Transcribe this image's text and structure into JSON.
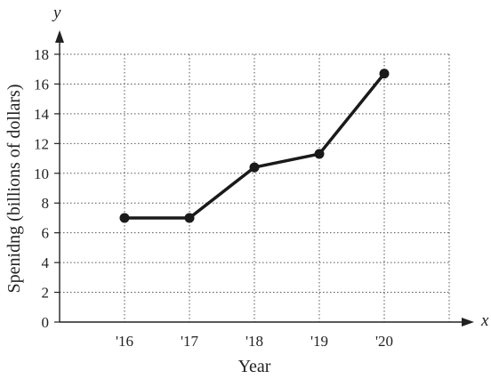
{
  "chart_data": {
    "type": "line",
    "title": "",
    "xlabel": "Year",
    "ylabel": "Spenidng (billions of dollars)",
    "x_axis_letter": "x",
    "y_axis_letter": "y",
    "categories": [
      "'16",
      "'17",
      "'18",
      "'19",
      "'20"
    ],
    "values": [
      7,
      7,
      10.4,
      11.3,
      16.7
    ],
    "yticks": [
      0,
      2,
      4,
      6,
      8,
      10,
      12,
      14,
      16,
      18
    ],
    "ylim": [
      0,
      18
    ],
    "grid": true,
    "line_color": "#1a1a1a",
    "grid_color": "#555555"
  }
}
